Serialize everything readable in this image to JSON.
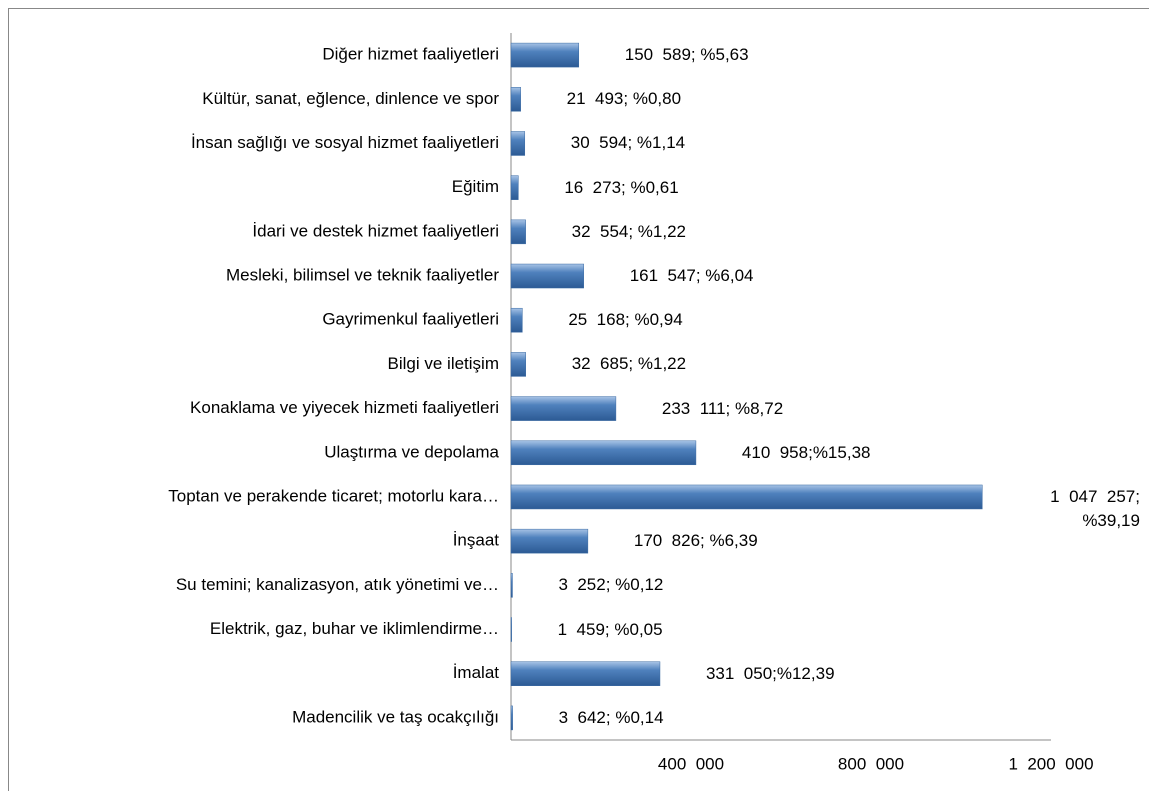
{
  "chart_data": {
    "type": "bar",
    "orientation": "horizontal",
    "categories": [
      "Diğer hizmet faaliyetleri",
      "Kültür, sanat, eğlence, dinlence ve spor",
      "İnsan sağlığı ve sosyal hizmet faaliyetleri",
      "Eğitim",
      "İdari ve destek hizmet faaliyetleri",
      "Mesleki, bilimsel ve teknik faaliyetler",
      "Gayrimenkul faaliyetleri",
      "Bilgi ve iletişim",
      "Konaklama ve yiyecek hizmeti faaliyetleri",
      "Ulaştırma ve depolama",
      "Toptan ve perakende ticaret; motorlu kara…",
      "İnşaat",
      "Su temini; kanalizasyon, atık yönetimi ve…",
      "Elektrik, gaz, buhar ve iklimlendirme…",
      "İmalat",
      "Madencilik ve taş ocakçılığı"
    ],
    "values": [
      150589,
      21493,
      30594,
      16273,
      32554,
      161547,
      25168,
      32685,
      233111,
      410958,
      1047257,
      170826,
      3252,
      1459,
      331050,
      3642
    ],
    "value_labels": [
      "150  589; %5,63",
      "21  493; %0,80",
      "30  594; %1,14",
      "16  273; %0,61",
      "32  554; %1,22",
      "161  547; %6,04",
      "25  168; %0,94",
      "32  685; %1,22",
      "233  111; %8,72",
      "410  958;%15,38",
      "1  047  257; %39,19",
      "170  826; %6,39",
      "3  252; %0,12",
      "1  459; %0,05",
      "331  050;%12,39",
      "3  642; %0,14"
    ],
    "color": "#4f81bd",
    "xlim": [
      0,
      1200000
    ],
    "xticks": [
      {
        "value": 400000,
        "label": "400  000"
      },
      {
        "value": 800000,
        "label": "800  000"
      },
      {
        "value": 1200000,
        "label": "1  200  000"
      }
    ]
  }
}
